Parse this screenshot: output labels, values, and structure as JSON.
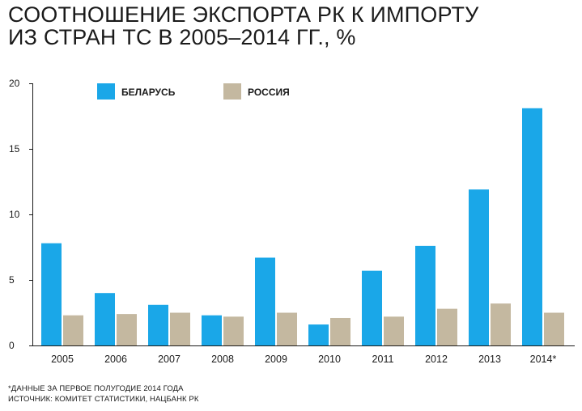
{
  "title": {
    "line1": "СООТНОШЕНИЕ ЭКСПОРТА РК К ИМПОРТУ",
    "line2": "ИЗ СТРАН ТС В 2005–2014 ГГ., %"
  },
  "footnote": {
    "note": "*ДАННЫЕ ЗА ПЕРВОЕ ПОЛУГОДИЕ 2014 ГОДА",
    "source": "ИСТОЧНИК: КОМИТЕТ СТАТИСТИКИ, НАЦБАНК РК"
  },
  "chart_data": {
    "type": "bar",
    "categories": [
      "2005",
      "2006",
      "2007",
      "2008",
      "2009",
      "2010",
      "2011",
      "2012",
      "2013",
      "2014*"
    ],
    "series": [
      {
        "name": "БЕЛАРУСЬ",
        "color": "#1aa7e8",
        "values": [
          7.8,
          4.0,
          3.1,
          2.3,
          6.7,
          1.6,
          5.7,
          7.6,
          11.9,
          18.1
        ]
      },
      {
        "name": "РОССИЯ",
        "color": "#c4b8a0",
        "values": [
          2.3,
          2.4,
          2.5,
          2.2,
          2.5,
          2.1,
          2.2,
          2.8,
          3.2,
          2.5
        ]
      }
    ],
    "yticks": [
      "0",
      "5",
      "10",
      "15",
      "20"
    ],
    "ylim": [
      0,
      20
    ],
    "legend_position": "top-left",
    "grid": false
  }
}
